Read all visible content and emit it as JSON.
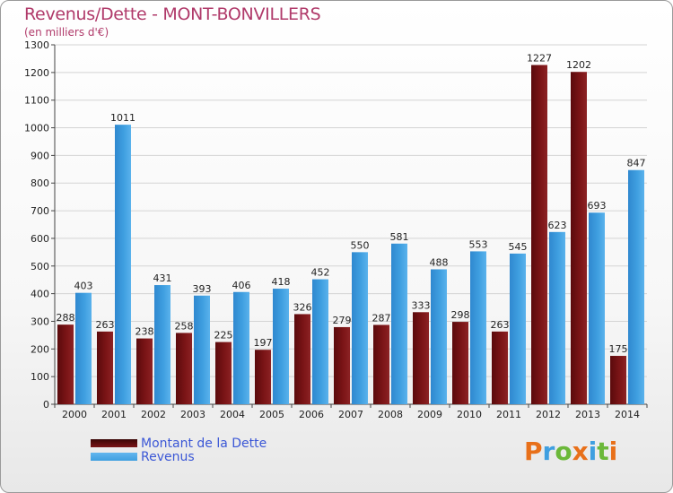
{
  "title": "Revenus/Dette - MONT-BONVILLERS",
  "subtitle": "(en milliers d'€)",
  "colors": {
    "dette": "#7a1416",
    "revenus": "#3f9fe0",
    "title": "#b03a6a",
    "legend_text": "#3b57d6"
  },
  "legend": [
    {
      "label": "Montant de la Dette",
      "color_key": "dette"
    },
    {
      "label": "Revenus",
      "color_key": "revenus"
    }
  ],
  "logo": {
    "text": "Proxiti",
    "colors": [
      "#e8701a",
      "#3f9fe0",
      "#6bb83a",
      "#e8701a",
      "#3f9fe0",
      "#6bb83a",
      "#e8701a"
    ]
  },
  "chart_data": {
    "type": "bar",
    "title": "Revenus/Dette - MONT-BONVILLERS",
    "subtitle": "(en milliers d'€)",
    "categories": [
      "2000",
      "2001",
      "2002",
      "2003",
      "2004",
      "2005",
      "2006",
      "2007",
      "2008",
      "2009",
      "2010",
      "2011",
      "2012",
      "2013",
      "2014"
    ],
    "series": [
      {
        "name": "Montant de la Dette",
        "values": [
          288,
          263,
          238,
          258,
          225,
          197,
          326,
          279,
          287,
          333,
          298,
          263,
          1227,
          1202,
          175
        ]
      },
      {
        "name": "Revenus",
        "values": [
          403,
          1011,
          431,
          393,
          406,
          418,
          452,
          550,
          581,
          488,
          553,
          545,
          623,
          693,
          847
        ]
      }
    ],
    "ylim": [
      0,
      1300
    ],
    "yticks": [
      0,
      100,
      200,
      300,
      400,
      500,
      600,
      700,
      800,
      900,
      1000,
      1100,
      1200,
      1300
    ],
    "grid": true,
    "legend_position": "bottom-left"
  }
}
